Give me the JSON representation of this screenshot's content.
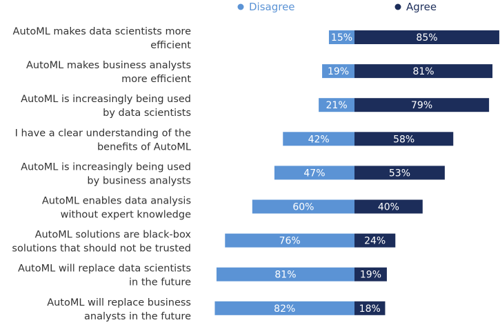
{
  "chart_data": {
    "type": "bar",
    "orientation": "horizontal-diverging",
    "title": "",
    "xlabel": "",
    "ylabel": "",
    "legend_placement": "top",
    "categories": [
      [
        "AutoML makes data scientists more",
        "efficient"
      ],
      [
        "AutoML makes business analysts",
        "more efficient"
      ],
      [
        "AutoML is increasingly being used",
        "by data scientists"
      ],
      [
        "I have a clear understanding of the",
        "benefits of AutoML"
      ],
      [
        "AutoML is increasingly being used",
        "by business analysts"
      ],
      [
        "AutoML enables data analysis",
        "without expert knowledge"
      ],
      [
        "AutoML solutions are black-box",
        "solutions that should not be trusted"
      ],
      [
        "AutoML will replace data scientists",
        "in the future"
      ],
      [
        "AutoML will replace business",
        "analysts in the future"
      ]
    ],
    "series": [
      {
        "name": "Disagree",
        "color": "#5b93d5",
        "values": [
          15,
          19,
          21,
          42,
          47,
          60,
          76,
          81,
          82
        ],
        "labels": [
          "15%",
          "19%",
          "21%",
          "42%",
          "47%",
          "60%",
          "76%",
          "81%",
          "82%"
        ]
      },
      {
        "name": "Agree",
        "color": "#1c2d5a",
        "values": [
          85,
          81,
          79,
          58,
          53,
          40,
          24,
          19,
          18
        ],
        "labels": [
          "85%",
          "81%",
          "79%",
          "58%",
          "53%",
          "40%",
          "24%",
          "19%",
          "18%"
        ]
      }
    ],
    "unit": "%",
    "grid": false
  }
}
